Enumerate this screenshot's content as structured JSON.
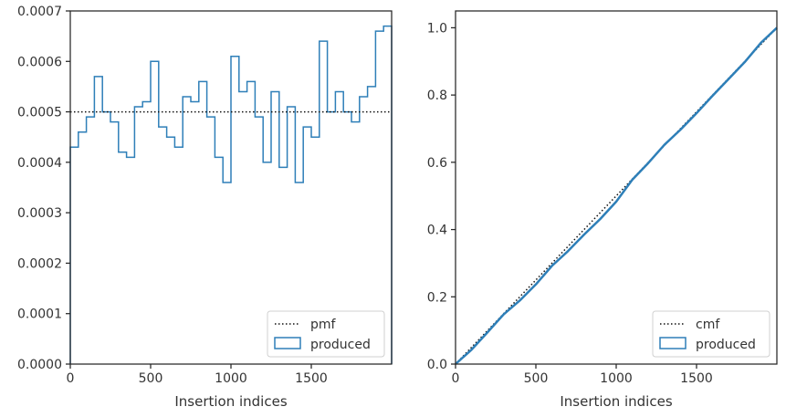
{
  "chart_data": [
    {
      "type": "histogram-step",
      "xlabel": "Insertion indices",
      "ylabel": "",
      "xlim": [
        0,
        2000
      ],
      "ylim": [
        0,
        0.0007
      ],
      "xticks": [
        "0",
        "500",
        "1000",
        "1500"
      ],
      "yticks": [
        "0.0000",
        "0.0001",
        "0.0002",
        "0.0003",
        "0.0004",
        "0.0005",
        "0.0006",
        "0.0007"
      ],
      "legend_position": "bottom-right",
      "reference_line": {
        "name": "pmf",
        "y": 0.0005,
        "style": "dotted",
        "color": "#111111"
      },
      "series": [
        {
          "name": "produced",
          "color": "#2e7fb8",
          "bin_edges": [
            0,
            50,
            100,
            150,
            200,
            250,
            300,
            350,
            400,
            450,
            500,
            550,
            600,
            650,
            700,
            750,
            800,
            850,
            900,
            950,
            1000,
            1050,
            1100,
            1150,
            1200,
            1250,
            1300,
            1350,
            1400,
            1450,
            1500,
            1550,
            1600,
            1650,
            1700,
            1750,
            1800,
            1850,
            1900,
            1950,
            2000
          ],
          "values": [
            0.00043,
            0.00046,
            0.00049,
            0.00057,
            0.0005,
            0.00048,
            0.00042,
            0.00041,
            0.00051,
            0.00052,
            0.0006,
            0.00047,
            0.00045,
            0.00043,
            0.00053,
            0.00052,
            0.00056,
            0.00049,
            0.00041,
            0.00036,
            0.00061,
            0.00054,
            0.00056,
            0.00049,
            0.0004,
            0.00054,
            0.00039,
            0.00051,
            0.00036,
            0.00047,
            0.00045,
            0.00064,
            0.0005,
            0.00054,
            0.0005,
            0.00048,
            0.00053,
            0.00055,
            0.00066,
            0.00067
          ]
        }
      ]
    },
    {
      "type": "line",
      "xlabel": "Insertion indices",
      "ylabel": "",
      "xlim": [
        0,
        2000
      ],
      "ylim": [
        0,
        1.05
      ],
      "xticks": [
        "0",
        "500",
        "1000",
        "1500"
      ],
      "yticks": [
        "0.0",
        "0.2",
        "0.4",
        "0.6",
        "0.8",
        "1.0"
      ],
      "legend_position": "bottom-right",
      "reference_line": {
        "name": "cmf",
        "from": [
          0,
          0
        ],
        "to": [
          2000,
          1.0
        ],
        "style": "dotted",
        "color": "#111111"
      },
      "series": [
        {
          "name": "produced",
          "color": "#2e7fb8",
          "x": [
            0,
            100,
            200,
            300,
            400,
            500,
            600,
            700,
            800,
            900,
            1000,
            1100,
            1200,
            1300,
            1400,
            1500,
            1600,
            1700,
            1800,
            1900,
            2000
          ],
          "y": [
            0,
            0.043,
            0.095,
            0.148,
            0.189,
            0.237,
            0.292,
            0.336,
            0.385,
            0.431,
            0.483,
            0.548,
            0.598,
            0.652,
            0.697,
            0.746,
            0.798,
            0.848,
            0.898,
            0.955,
            1.0
          ]
        }
      ]
    }
  ]
}
